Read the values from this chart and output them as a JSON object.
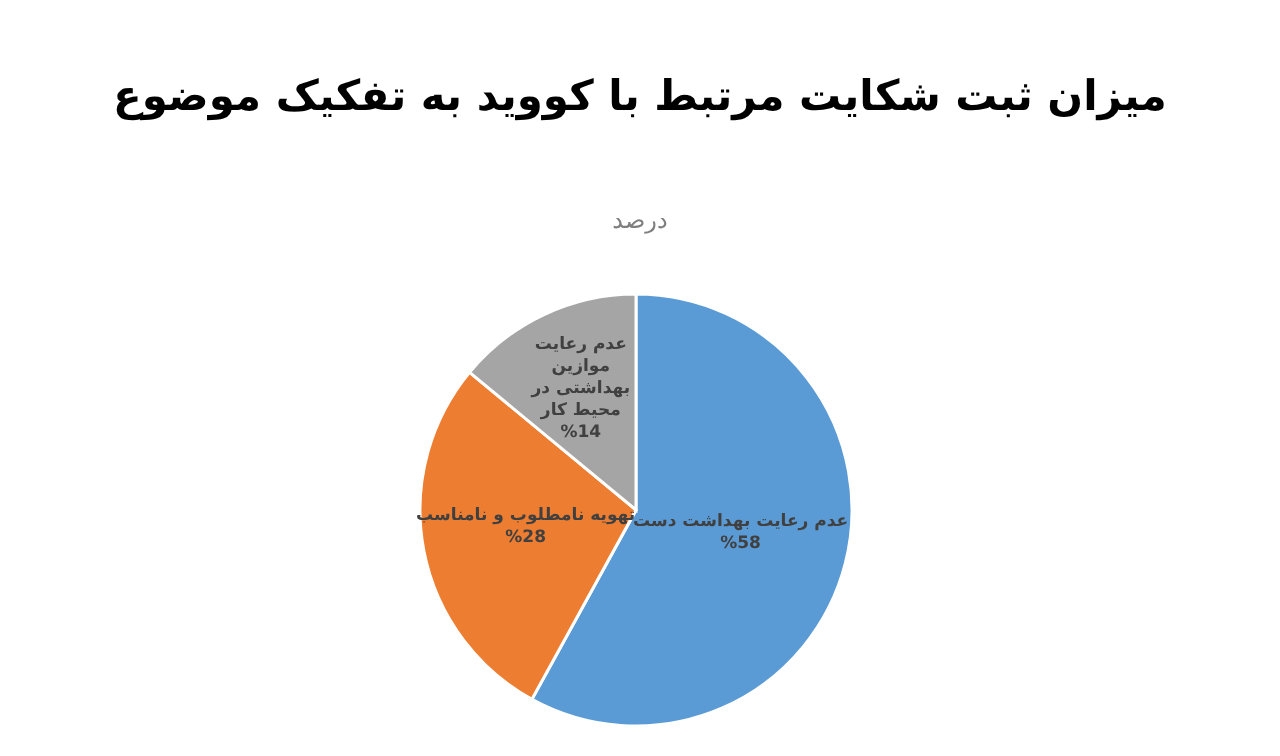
{
  "chart_data": {
    "type": "pie",
    "title": "میزان ثبت شکایت مرتبط با کووید به تفکیک موضوع",
    "subtitle": "درصد",
    "categories": [
      "عدم رعایت بهداشت دست",
      "تهویه نامطلوب و نامناسب",
      "عدم رعایت موازین بهداشتی در محیط کار"
    ],
    "values": [
      58,
      28,
      14
    ],
    "colors": [
      "#5b9bd5",
      "#ed7d31",
      "#a5a5a5"
    ],
    "value_labels": [
      "%58",
      "%28",
      "%14"
    ]
  }
}
